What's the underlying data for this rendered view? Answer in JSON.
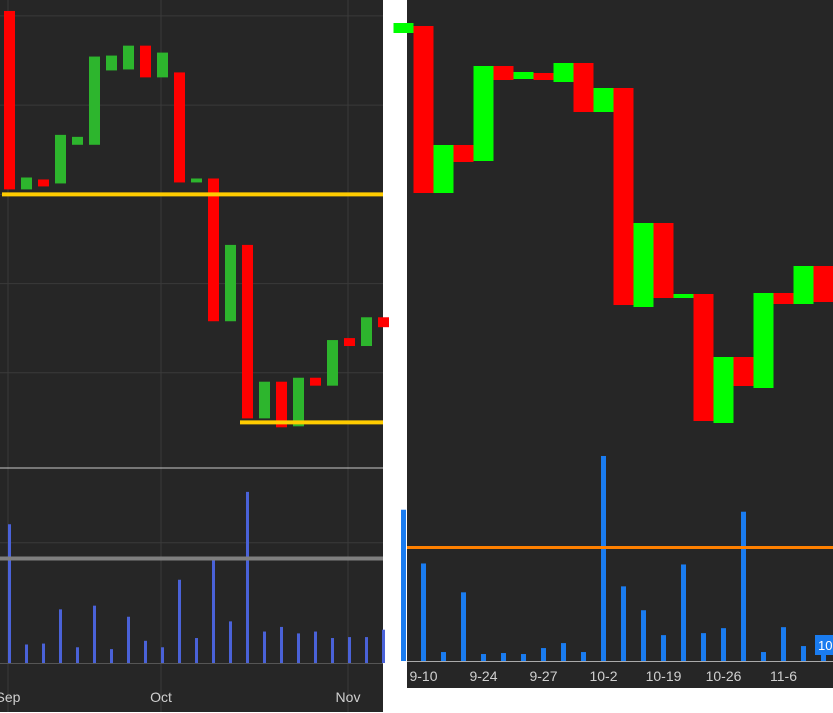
{
  "colors": {
    "background": "#262626",
    "gap": "#ffffff",
    "grid": "#3a3a3a",
    "left_up": "#2db52d",
    "left_down": "#ff0000",
    "left_volume": "#4a62d8",
    "left_support": "#ffcc00",
    "left_volume_avg": "#7f7f7f",
    "right_up": "#00ff00",
    "right_down": "#ff0000",
    "right_volume": "#1a7cf0",
    "right_volume_avg": "#ff8000",
    "axis_text": "#d0d0d0",
    "badge": "#1a7cf0"
  },
  "chart_data": [
    {
      "type": "candlestick",
      "panel": "left",
      "title": "",
      "xlabel": "",
      "ylabel": "",
      "grid": true,
      "x_tick_labels": [
        "Sep",
        "Oct",
        "Nov"
      ],
      "x_tick_index": [
        0,
        9,
        20
      ],
      "ylim": [
        0,
        460
      ],
      "candles": [
        {
          "open": 455,
          "close": 275
        },
        {
          "open": 275,
          "close": 287
        },
        {
          "open": 285,
          "close": 278
        },
        {
          "open": 281,
          "close": 330
        },
        {
          "open": 320,
          "close": 328
        },
        {
          "open": 320,
          "close": 409
        },
        {
          "open": 395,
          "close": 410
        },
        {
          "open": 396,
          "close": 420
        },
        {
          "open": 420,
          "close": 388
        },
        {
          "open": 388,
          "close": 413
        },
        {
          "open": 393,
          "close": 282
        },
        {
          "open": 282,
          "close": 286
        },
        {
          "open": 286,
          "close": 142
        },
        {
          "open": 142,
          "close": 219
        },
        {
          "open": 219,
          "close": 44
        },
        {
          "open": 44,
          "close": 81
        },
        {
          "open": 81,
          "close": 35
        },
        {
          "open": 36,
          "close": 85
        },
        {
          "open": 85,
          "close": 77
        },
        {
          "open": 77,
          "close": 123
        },
        {
          "open": 125,
          "close": 117
        },
        {
          "open": 117,
          "close": 146
        },
        {
          "open": 146,
          "close": 136
        }
      ],
      "support_levels": [
        {
          "value": 270,
          "from_index": 0
        },
        {
          "value": 40,
          "from_index": 14
        }
      ],
      "volume": {
        "ylim": [
          0,
          200
        ],
        "values": [
          150,
          20,
          21,
          58,
          17,
          62,
          15,
          50,
          24,
          17,
          90,
          27,
          112,
          45,
          185,
          34,
          39,
          32,
          34,
          27,
          28,
          28,
          36
        ],
        "average": 113
      }
    },
    {
      "type": "candlestick",
      "panel": "right",
      "title": "",
      "xlabel": "",
      "ylabel": "",
      "grid": false,
      "x_tick_labels": [
        "9-10",
        "9-24",
        "9-27",
        "10-2",
        "10-19",
        "10-26",
        "11-6"
      ],
      "x_tick_index": [
        1,
        4,
        7,
        10,
        13,
        16,
        19
      ],
      "ylim": [
        0,
        430
      ],
      "candles": [
        {
          "open": 405,
          "close": 415
        },
        {
          "open": 412,
          "close": 245
        },
        {
          "open": 245,
          "close": 293
        },
        {
          "open": 293,
          "close": 276
        },
        {
          "open": 277,
          "close": 372
        },
        {
          "open": 372,
          "close": 358
        },
        {
          "open": 359,
          "close": 366
        },
        {
          "open": 365,
          "close": 358
        },
        {
          "open": 356,
          "close": 375
        },
        {
          "open": 375,
          "close": 326
        },
        {
          "open": 326,
          "close": 350
        },
        {
          "open": 350,
          "close": 133
        },
        {
          "open": 131,
          "close": 215
        },
        {
          "open": 215,
          "close": 140
        },
        {
          "open": 140,
          "close": 144
        },
        {
          "open": 144,
          "close": 17
        },
        {
          "open": 15,
          "close": 81
        },
        {
          "open": 81,
          "close": 52
        },
        {
          "open": 50,
          "close": 145
        },
        {
          "open": 145,
          "close": 134
        },
        {
          "open": 134,
          "close": 172
        },
        {
          "open": 172,
          "close": 136
        }
      ],
      "volume": {
        "ylim": [
          0,
          210
        ],
        "values": [
          152,
          98,
          9,
          69,
          7,
          8,
          7,
          13,
          18,
          9,
          206,
          75,
          51,
          26,
          97,
          28,
          33,
          150,
          9,
          34,
          15,
          10
        ],
        "average": 114
      },
      "badge_text": "10"
    }
  ]
}
